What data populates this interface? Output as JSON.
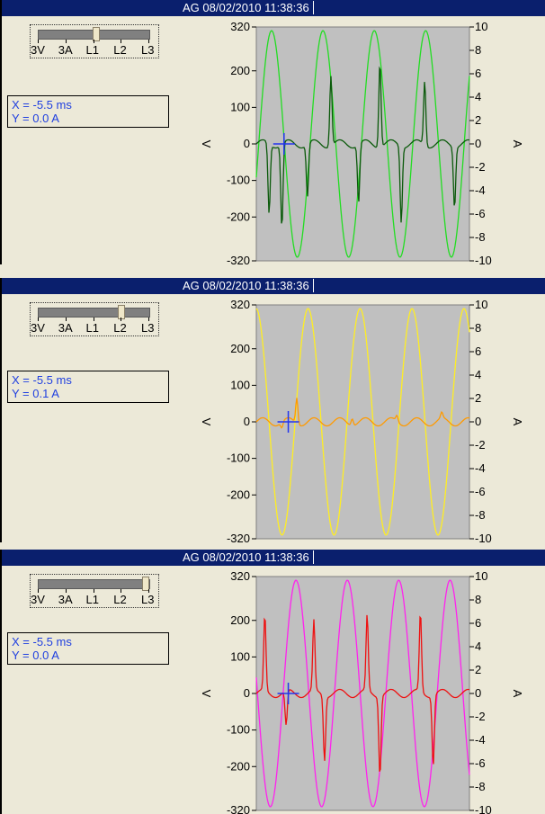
{
  "panels": [
    {
      "title": "AG  08/02/2010 11:38:36",
      "selector_labels": [
        "3V",
        "3A",
        "L1",
        "L2",
        "L3"
      ],
      "selector_position": 0.55,
      "readout": {
        "x": "X = -5.5 ms",
        "y": "Y = 0.0 A"
      },
      "colors": {
        "voltage": "#22dd22",
        "current": "#0b5a0b"
      }
    },
    {
      "title": "AG  08/02/2010 11:38:36",
      "selector_labels": [
        "3V",
        "3A",
        "L1",
        "L2",
        "L3"
      ],
      "selector_position": 0.78,
      "readout": {
        "x": "X = -5.5 ms",
        "y": "Y = 0.1 A"
      },
      "colors": {
        "voltage": "#ffee22",
        "current": "#ff9a00"
      }
    },
    {
      "title": "AG  08/02/2010 11:38:36",
      "selector_labels": [
        "3V",
        "3A",
        "L1",
        "L2",
        "L3"
      ],
      "selector_position": 1.0,
      "readout": {
        "x": "X = -5.5 ms",
        "y": "Y = 0.0 A"
      },
      "colors": {
        "voltage": "#ff22ee",
        "current": "#ee1111"
      }
    }
  ],
  "chart_data": [
    {
      "type": "line",
      "left_axis": {
        "label": "V",
        "range": [
          -320,
          320
        ],
        "ticks": [
          "320",
          "200",
          "100",
          "0",
          "-100",
          "-200",
          "-320"
        ]
      },
      "right_axis": {
        "label": "A",
        "range": [
          -10,
          10
        ],
        "ticks": [
          "10",
          "8",
          "6",
          "4",
          "2",
          "0",
          "-2",
          "-4",
          "-6",
          "-8",
          "-10"
        ]
      },
      "series": [
        {
          "kind": "voltage",
          "amplitude": 310,
          "cycles": 4.15,
          "phase": -0.3
        },
        {
          "kind": "current",
          "spikes": [
            [
              0.12,
              -7.2
            ],
            [
              0.06,
              -6.0
            ],
            [
              0.35,
              6.0
            ],
            [
              0.24,
              -4.5
            ],
            [
              0.48,
              -5.0
            ],
            [
              0.58,
              7.3
            ],
            [
              0.68,
              -6.5
            ],
            [
              0.79,
              5.5
            ],
            [
              0.93,
              -5.2
            ]
          ]
        }
      ],
      "crosshair": {
        "x": 0.13,
        "y": 0
      }
    },
    {
      "type": "line",
      "left_axis": {
        "label": "V",
        "range": [
          -320,
          320
        ],
        "ticks": [
          "320",
          "200",
          "100",
          "0",
          "-100",
          "-200",
          "-320"
        ]
      },
      "right_axis": {
        "label": "A",
        "range": [
          -10,
          10
        ],
        "ticks": [
          "10",
          "8",
          "6",
          "4",
          "2",
          "0",
          "-2",
          "-4",
          "-6",
          "-8",
          "-10"
        ]
      },
      "series": [
        {
          "kind": "voltage",
          "amplitude": 310,
          "cycles": 4.1,
          "phase": 1.6
        },
        {
          "kind": "current",
          "spikes": [
            [
              0.19,
              2.2
            ],
            [
              0.12,
              -0.5
            ],
            [
              0.45,
              0.6
            ],
            [
              0.66,
              0.5
            ],
            [
              0.87,
              0.5
            ]
          ]
        }
      ],
      "crosshair": {
        "x": 0.15,
        "y": 0
      }
    },
    {
      "type": "line",
      "left_axis": {
        "label": "V",
        "range": [
          -320,
          320
        ],
        "ticks": [
          "320",
          "200",
          "100",
          "0",
          "-100",
          "-200",
          "-320"
        ]
      },
      "right_axis": {
        "label": "A",
        "range": [
          -10,
          10
        ],
        "ticks": [
          "10",
          "8",
          "6",
          "4",
          "2",
          "0",
          "-2",
          "-4",
          "-6",
          "-8",
          "-10"
        ]
      },
      "series": [
        {
          "kind": "voltage",
          "amplitude": 310,
          "cycles": 4.15,
          "phase": 3.0
        },
        {
          "kind": "current",
          "spikes": [
            [
              0.04,
              6.5
            ],
            [
              0.14,
              -3.0
            ],
            [
              0.27,
              6.0
            ],
            [
              0.32,
              -5.5
            ],
            [
              0.52,
              6.5
            ],
            [
              0.58,
              -6.8
            ],
            [
              0.77,
              6.8
            ],
            [
              0.83,
              -6.0
            ]
          ]
        }
      ],
      "crosshair": {
        "x": 0.15,
        "y": 0
      }
    }
  ]
}
